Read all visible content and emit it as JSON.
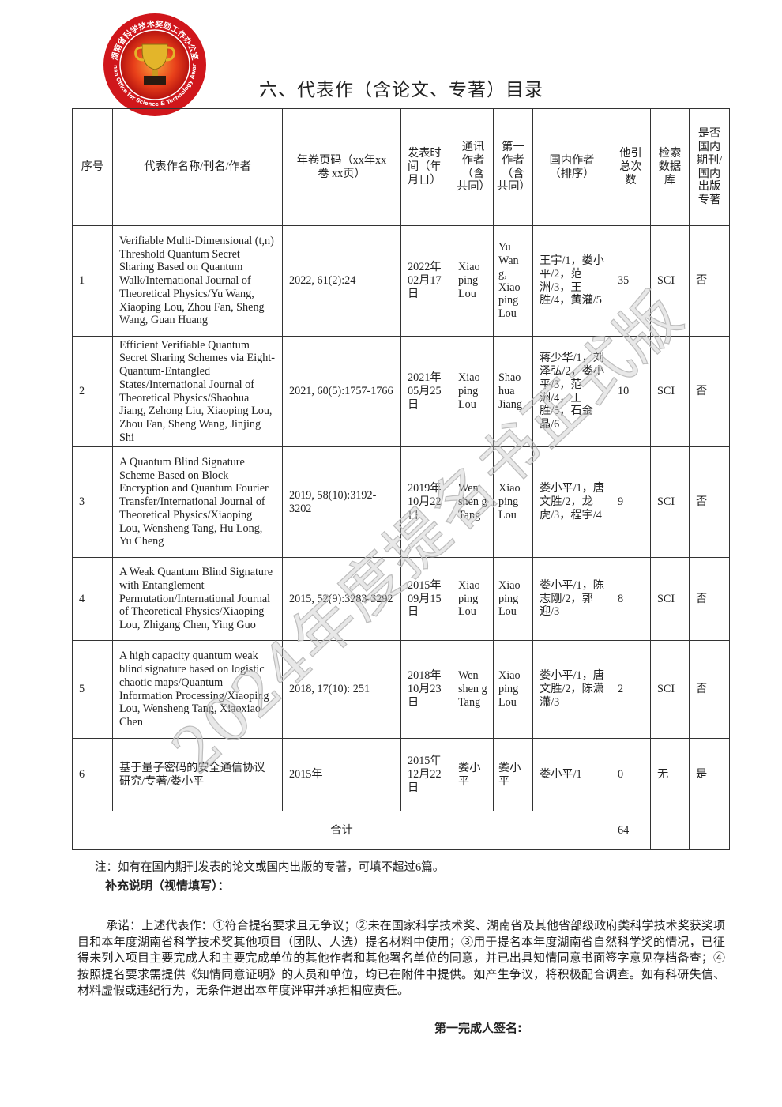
{
  "logo": {
    "text_cn": "湖南省科学技术奖励工作办公室",
    "text_en": "Hunan Office for Science & Technology Awards",
    "colors": {
      "ring": "#d0161b",
      "inner": "#e8401a"
    }
  },
  "title": "六、代表作（含论文、专著）目录",
  "headers": [
    "序号",
    "代表作名称/刊名/作者",
    "年卷页码（xx年xx卷 xx页）",
    "发表时间（年月日）",
    "通讯作者（含共同）",
    "第一作者（含共同）",
    "国内作者（排序）",
    "他引总次数",
    "检索数据库",
    "是否国内期刊/国内出版专著"
  ],
  "rows": [
    {
      "no": "1",
      "work": "Verifiable Multi-Dimensional (t,n) Threshold Quantum Secret Sharing Based on Quantum Walk/International Journal of Theoretical Physics/Yu Wang, Xiaoping Lou, Zhou Fan, Sheng Wang, Guan Huang",
      "volume": "2022, 61(2):24",
      "date": "2022年02月17日",
      "corr": "Xiao ping Lou",
      "first": "Yu Wan g, Xiao ping Lou",
      "domestic": "王宇/1，娄小平/2，范洲/3，王胜/4，黄灌/5",
      "citations": "35",
      "db": "SCI",
      "domestic_pub": "否"
    },
    {
      "no": "2",
      "work": "Efficient Verifiable Quantum Secret Sharing Schemes via Eight-Quantum-Entangled States/International Journal of Theoretical Physics/Shaohua Jiang, Zehong Liu, Xiaoping Lou, Zhou Fan, Sheng Wang, Jinjing Shi",
      "volume": "2021, 60(5):1757-1766",
      "date": "2021年05月25日",
      "corr": "Xiao ping Lou",
      "first": "Shao hua Jiang",
      "domestic": "蒋少华/1，刘泽弘/2，娄小平/3，范洲/4，王胜/5，石金晶/6",
      "citations": "10",
      "db": "SCI",
      "domestic_pub": "否"
    },
    {
      "no": "3",
      "work": "A Quantum Blind Signature Scheme Based on Block Encryption and Quantum Fourier Transfer/International Journal of Theoretical Physics/Xiaoping Lou, Wensheng Tang, Hu Long, Yu Cheng",
      "volume": "2019, 58(10):3192-3202",
      "date": "2019年10月22日",
      "corr": "Wen shen g Tang",
      "first": "Xiao ping Lou",
      "domestic": "娄小平/1，唐文胜/2，龙虎/3，程宇/4",
      "citations": "9",
      "db": "SCI",
      "domestic_pub": "否"
    },
    {
      "no": "4",
      "work": "A Weak Quantum Blind Signature with Entanglement Permutation/International Journal of Theoretical Physics/Xiaoping Lou, Zhigang Chen, Ying Guo",
      "volume": "2015, 52(9):3283-3292",
      "date": "2015年09月15日",
      "corr": "Xiao ping Lou",
      "first": "Xiao ping Lou",
      "domestic": "娄小平/1，陈志刚/2，郭迎/3",
      "citations": "8",
      "db": "SCI",
      "domestic_pub": "否"
    },
    {
      "no": "5",
      "work": "A high capacity quantum weak blind signature based on logistic chaotic maps/Quantum Information Processing/Xiaoping Lou, Wensheng Tang, Xiaoxiao Chen",
      "volume": "2018, 17(10): 251",
      "date": "2018年10月23日",
      "corr": "Wen shen g Tang",
      "first": "Xiao ping Lou",
      "domestic": "娄小平/1，唐文胜/2，陈潇潇/3",
      "citations": "2",
      "db": "SCI",
      "domestic_pub": "否"
    },
    {
      "no": "6",
      "work": "基于量子密码的安全通信协议研究/专著/娄小平",
      "volume": "2015年",
      "date": "2015年12月22日",
      "corr": "娄小平",
      "first": "娄小平",
      "domestic": "娄小平/1",
      "citations": "0",
      "db": "无",
      "domestic_pub": "是"
    }
  ],
  "total": {
    "label": "合计",
    "citations": "64"
  },
  "note": "注：如有在国内期刊发表的论文或国内出版的专著，可填不超过6篇。",
  "supplement_label": "补充说明（视情填写）：",
  "promise": "承诺：上述代表作：①符合提名要求且无争议；②未在国家科学技术奖、湖南省及其他省部级政府类科学技术奖获奖项目和本年度湖南省科学技术奖其他项目（团队、人选）提名材料中使用；③用于提名本年度湖南省自然科学奖的情况，已征得未列入项目主要完成人和主要完成单位的其他作者和其他署名单位的同意，并已出具知情同意书面签字意见存档备查；④按照提名要求需提供《知情同意证明》的人员和单位，均已在附件中提供。如产生争议，将积极配合调查。如有科研失信、材料虚假或违纪行为，无条件退出本年度评审并承担相应责任。",
  "signature_label": "第一完成人签名:",
  "watermark": "2024年度提名书正式版"
}
